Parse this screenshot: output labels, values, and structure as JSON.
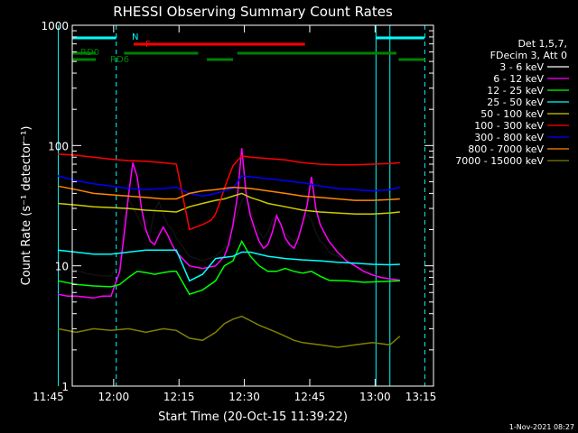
{
  "chart_data": {
    "type": "line",
    "title": "RHESSI Observing Summary Count Rates",
    "xlabel": "Start Time (20-Oct-15 11:39:22)",
    "ylabel": "Count Rate (s⁻¹ detector⁻¹)",
    "yscale": "log",
    "ylim": [
      1,
      1000
    ],
    "xlim_minutes": [
      11.1,
      94.0
    ],
    "x_ticks": [
      "11:45",
      "12:00",
      "12:15",
      "12:30",
      "12:45",
      "13:00",
      "13:15"
    ],
    "x_tick_minutes": [
      5.6,
      20.6,
      35.6,
      50.6,
      65.6,
      80.6,
      95.6
    ],
    "y_ticks": [
      "1",
      "10",
      "100",
      "1000"
    ],
    "y_tick_values": [
      1,
      10,
      100,
      1000
    ],
    "legend_header": [
      "Det 1,5,7,",
      "FDecim 3, Att 0"
    ],
    "legend_position": "right",
    "date_stamp": "1-Nov-2021 08:27",
    "series": [
      {
        "name": "3 - 6 keV",
        "color": "#000000",
        "x": [
          7.8,
          11,
          14,
          17,
          20,
          22,
          23,
          24,
          25,
          26,
          27,
          28,
          29,
          30,
          31,
          32,
          33,
          34,
          35,
          38,
          41,
          44,
          46,
          47,
          48,
          49,
          50,
          51,
          52,
          53,
          54,
          55,
          56,
          57,
          58,
          59,
          60,
          61,
          62,
          63,
          64,
          65,
          66,
          67,
          68,
          69,
          70,
          72,
          74,
          76,
          78,
          80,
          82,
          84,
          86.3
        ],
        "y": [
          10,
          9.5,
          8.7,
          8.3,
          8.2,
          11,
          24,
          36,
          31,
          26,
          22,
          19,
          19,
          29,
          34,
          27,
          22,
          20,
          17,
          12,
          11,
          12,
          14,
          16,
          21,
          27,
          35,
          38,
          29,
          22,
          19,
          17,
          19,
          24,
          27,
          22,
          19,
          17,
          16,
          18,
          22,
          27,
          24,
          19,
          16,
          15,
          13,
          12,
          11,
          10,
          9.5,
          8.5,
          8,
          7.8,
          7.6
        ]
      },
      {
        "name": "6 - 12 keV",
        "color": "#ff00ff",
        "x": [
          7.8,
          10,
          12,
          14,
          16,
          18,
          20,
          22,
          23,
          24,
          25,
          26,
          27,
          28,
          29,
          30,
          31,
          32,
          33,
          34,
          35,
          38,
          41,
          44,
          46,
          47,
          48,
          49,
          50,
          51,
          52,
          53,
          54,
          55,
          56,
          57,
          58,
          59,
          60,
          61,
          62,
          63,
          64,
          65,
          66,
          67,
          68,
          70,
          72,
          74,
          76,
          78,
          80,
          82,
          84,
          86.3
        ],
        "y": [
          5.8,
          5.6,
          5.6,
          5.5,
          5.4,
          5.6,
          5.6,
          9,
          18,
          38,
          72,
          55,
          30,
          20,
          16,
          15,
          18,
          21,
          18,
          15,
          13,
          10,
          9.5,
          10,
          12,
          15,
          22,
          38,
          95,
          40,
          26,
          20,
          16,
          14,
          15,
          19,
          26,
          22,
          17,
          15,
          14,
          17,
          23,
          32,
          55,
          30,
          22,
          16,
          13,
          11,
          10,
          9,
          8.4,
          8,
          7.8,
          7.6
        ]
      },
      {
        "name": "12 - 25 keV",
        "color": "#00ff00",
        "x": [
          7.8,
          12,
          16,
          20,
          22,
          24,
          26,
          28,
          30,
          32,
          34,
          35,
          38,
          41,
          44,
          46,
          48,
          50,
          52,
          54,
          56,
          58,
          60,
          62,
          64,
          66,
          68,
          70,
          74,
          78,
          82,
          86.3
        ],
        "y": [
          7.5,
          7,
          6.8,
          6.7,
          7,
          8,
          9,
          8.8,
          8.5,
          8.8,
          9,
          9,
          5.8,
          6.3,
          7.5,
          10,
          11,
          16,
          12,
          10,
          9,
          9,
          9.5,
          9,
          8.7,
          9,
          8.2,
          7.6,
          7.5,
          7.3,
          7.4,
          7.5
        ]
      },
      {
        "name": "25 - 50 keV",
        "color": "#00ffff",
        "x": [
          7.8,
          12,
          16,
          20,
          24,
          28,
          32,
          35,
          38,
          41,
          44,
          48,
          50,
          52,
          56,
          60,
          64,
          68,
          72,
          76,
          80,
          84,
          86.3
        ],
        "y": [
          13.5,
          13,
          12.5,
          12.5,
          13,
          13.5,
          13.5,
          13.5,
          7.5,
          8.5,
          11.5,
          12,
          13,
          13,
          12,
          11.5,
          11.2,
          11,
          10.7,
          10.5,
          10.3,
          10.2,
          10.3
        ]
      },
      {
        "name": "50 - 100 keV",
        "color": "#cccc00",
        "x": [
          7.8,
          12,
          16,
          20,
          24,
          28,
          32,
          35,
          38,
          41,
          44,
          46,
          48,
          50,
          52,
          54,
          56,
          60,
          64,
          68,
          72,
          76,
          80,
          84,
          86.3
        ],
        "y": [
          33,
          32,
          31,
          30.5,
          30,
          29,
          28.5,
          28,
          31,
          33,
          35,
          36,
          38,
          40,
          37,
          35,
          33,
          31,
          29,
          28,
          27.5,
          27,
          27,
          27.5,
          28
        ]
      },
      {
        "name": "100 - 300 keV",
        "color": "#ff0000",
        "x": [
          7.8,
          12,
          16,
          20,
          24,
          28,
          32,
          35,
          38,
          41,
          43,
          44,
          45,
          46,
          47,
          48,
          50,
          52,
          56,
          60,
          64,
          68,
          72,
          76,
          80,
          84,
          86.3
        ],
        "y": [
          85,
          83,
          80,
          77,
          75,
          74,
          72,
          70,
          20,
          22,
          24,
          27,
          34,
          44,
          55,
          68,
          82,
          80,
          78,
          76,
          72,
          70,
          69,
          69,
          70,
          71,
          72
        ]
      },
      {
        "name": "300 - 800 keV",
        "color": "#0000ff",
        "x": [
          7.8,
          12,
          16,
          20,
          24,
          28,
          32,
          35,
          38,
          41,
          44,
          48,
          50,
          52,
          56,
          60,
          64,
          68,
          72,
          76,
          80,
          84,
          86.3
        ],
        "y": [
          56,
          51,
          48,
          46,
          44,
          43,
          44,
          45,
          40,
          38,
          40,
          44,
          56,
          55,
          53,
          51,
          49,
          46,
          44,
          43,
          42,
          43,
          45
        ]
      },
      {
        "name": "800 - 7000 keV",
        "color": "#ff8800",
        "x": [
          7.8,
          12,
          16,
          20,
          24,
          28,
          32,
          35,
          38,
          41,
          44,
          48,
          52,
          56,
          60,
          64,
          68,
          72,
          76,
          80,
          84,
          86.3
        ],
        "y": [
          46,
          43,
          40,
          39,
          38,
          37,
          36,
          36,
          40,
          42,
          43,
          45,
          44,
          42,
          40,
          38,
          37,
          36,
          35,
          35,
          35.5,
          36
        ]
      },
      {
        "name": "7000 - 15000 keV",
        "color": "#808000",
        "x": [
          7.8,
          12,
          16,
          20,
          24,
          28,
          32,
          35,
          38,
          41,
          44,
          46,
          48,
          50,
          52,
          54,
          56,
          58,
          60,
          62,
          64,
          68,
          72,
          76,
          80,
          84,
          86.3
        ],
        "y": [
          3,
          2.8,
          3,
          2.9,
          3,
          2.8,
          3,
          2.9,
          2.5,
          2.4,
          2.8,
          3.3,
          3.6,
          3.8,
          3.5,
          3.2,
          3,
          2.8,
          2.6,
          2.4,
          2.3,
          2.2,
          2.1,
          2.2,
          2.3,
          2.2,
          2.6
        ]
      }
    ],
    "annotations": [
      {
        "label": "N",
        "color": "#00ffff"
      },
      {
        "label": "F",
        "color": "#ff0000"
      },
      {
        "label": "RD0",
        "color": "#008000"
      },
      {
        "label": "RD6",
        "color": "#008000"
      }
    ],
    "flag_bars": [
      {
        "color": "#00ffff",
        "level": 0,
        "segments": [
          [
            11.1,
            21.2
          ],
          [
            80.8,
            91.9
          ]
        ]
      },
      {
        "color": "#ff0000",
        "level": 1,
        "segments": [
          [
            25.2,
            64.5
          ]
        ]
      },
      {
        "color": "#008000",
        "level": 2,
        "segments": [
          [
            11.1,
            16.5
          ],
          [
            23.0,
            40.0
          ],
          [
            49.0,
            85.5
          ]
        ]
      },
      {
        "color": "#008000",
        "level": 3,
        "segments": [
          [
            11.1,
            16.5
          ],
          [
            42.0,
            48.0
          ],
          [
            86.0,
            92.0
          ]
        ]
      }
    ],
    "vlines": [
      {
        "minute": 7.9,
        "color": "#00ffff",
        "style": "solid"
      },
      {
        "minute": 21.2,
        "color": "#00ffff",
        "style": "dashed"
      },
      {
        "minute": 80.8,
        "color": "#00ffff",
        "style": "solid"
      },
      {
        "minute": 84.0,
        "color": "#00ffff",
        "style": "solid"
      },
      {
        "minute": 92.0,
        "color": "#00ffff",
        "style": "dashed"
      }
    ]
  }
}
